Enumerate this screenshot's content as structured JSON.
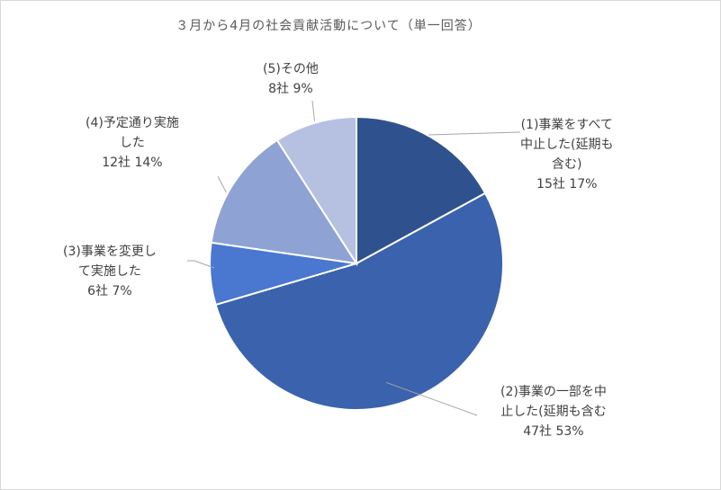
{
  "chart_data": {
    "type": "pie",
    "title": "３月から4月の社会貢献活動について（単一回答）",
    "categories": [
      "(1)事業をすべて中止した(延期も含む)",
      "(2)事業の一部を中止した(延期も含む",
      "(3)事業を変更して実施した",
      "(4)予定通り実施した",
      "(5)その他"
    ],
    "values": [
      15,
      47,
      6,
      12,
      8
    ],
    "percents": [
      "17%",
      "53%",
      "7%",
      "14%",
      "9%"
    ],
    "colors": [
      "#2f528f",
      "#3a62ad",
      "#4a77d0",
      "#8ea3d3",
      "#b6c1e2"
    ],
    "legend": "none",
    "labels": [
      {
        "lines": [
          "(1)事業をすべて",
          "中止した(延期も",
          "含む)"
        ],
        "value": "15社 17%"
      },
      {
        "lines": [
          "(2)事業の一部を中",
          "止した(延期も含む"
        ],
        "value": "47社 53%"
      },
      {
        "lines": [
          "(3)事業を変更し",
          "て実施した"
        ],
        "value": "6社 7%"
      },
      {
        "lines": [
          "(4)予定通り実施",
          "した"
        ],
        "value": "12社 14%"
      },
      {
        "lines": [
          "(5)その他"
        ],
        "value": "8社 9%"
      }
    ]
  }
}
